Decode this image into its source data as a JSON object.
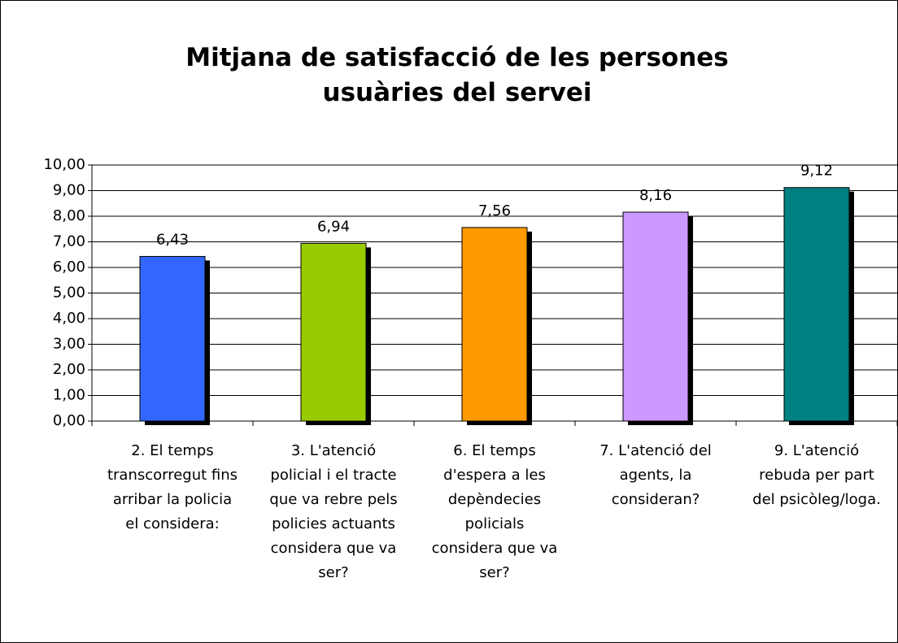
{
  "chart_data": {
    "type": "bar",
    "title": "Mitjana de satisfacció de les persones usuàries del servei",
    "categories": [
      "2. El temps transcorregut fins arribar la policia el considera:",
      "3. L'atenció policial i el tracte que va rebre pels policies actuants considera que va ser?",
      "6. El temps d'espera a les depèndecies policials considera que va ser?",
      "7. L'atenció del agents, la consideran?",
      "9. L'atenció rebuda per part del psicòleg/loga."
    ],
    "values": [
      6.43,
      6.94,
      7.56,
      8.16,
      9.12
    ],
    "value_labels": [
      "6,43",
      "6,94",
      "7,56",
      "8,16",
      "9,12"
    ],
    "colors": [
      "#3366ff",
      "#99cc00",
      "#ff9900",
      "#cc99ff",
      "#008080"
    ],
    "ylim": [
      0,
      10
    ],
    "yticks": [
      {
        "value": 0,
        "label": "0,00"
      },
      {
        "value": 1,
        "label": "1,00"
      },
      {
        "value": 2,
        "label": "2,00"
      },
      {
        "value": 3,
        "label": "3,00"
      },
      {
        "value": 4,
        "label": "4,00"
      },
      {
        "value": 5,
        "label": "5,00"
      },
      {
        "value": 6,
        "label": "6,00"
      },
      {
        "value": 7,
        "label": "7,00"
      },
      {
        "value": 8,
        "label": "8,00"
      },
      {
        "value": 9,
        "label": "9,00"
      },
      {
        "value": 10,
        "label": "10,00"
      }
    ],
    "grid": true
  }
}
